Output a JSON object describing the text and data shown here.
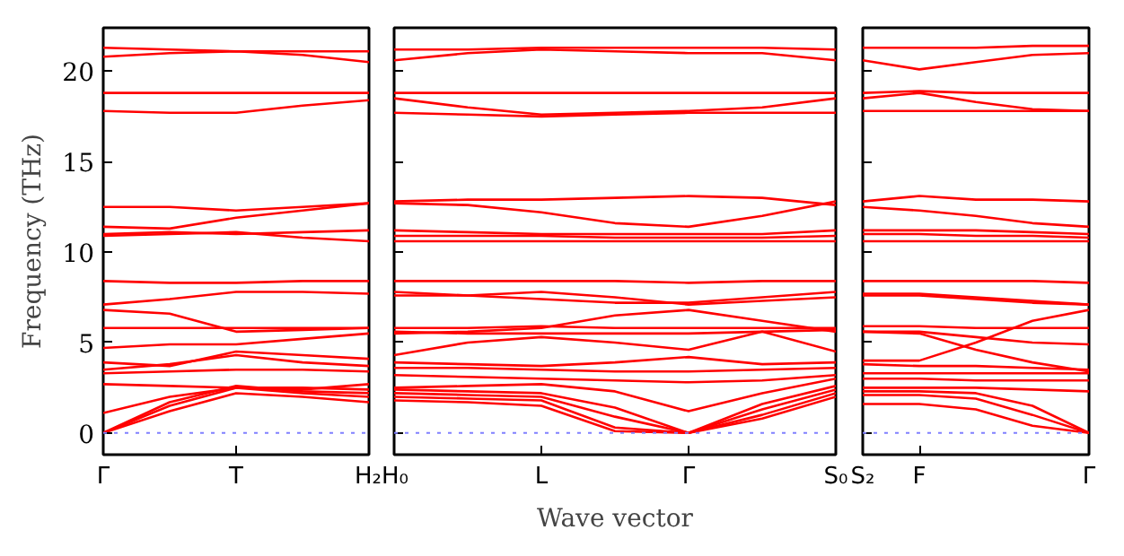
{
  "chart_data": [
    {
      "type": "line",
      "ylabel": "Frequency (THz)",
      "color": "#ff0000",
      "ylim": [
        -1.2,
        22.4
      ],
      "yticks": [
        0,
        5,
        10,
        15,
        20
      ],
      "tick_labels": "xy",
      "categories": [
        "Γ",
        null,
        "T",
        null,
        "H₂"
      ],
      "ref_lines": [
        {
          "axis": "y",
          "value": 0,
          "label": null,
          "color": "#8080ff",
          "line_style": "dotted"
        }
      ],
      "series": [
        {
          "values": [
            21.3,
            21.2,
            21.1,
            21.1,
            21.1
          ]
        },
        {
          "values": [
            20.8,
            21.0,
            21.1,
            20.9,
            20.5
          ]
        },
        {
          "values": [
            18.8,
            18.8,
            18.8,
            18.8,
            18.8
          ]
        },
        {
          "values": [
            17.8,
            17.7,
            17.7,
            18.1,
            18.4
          ]
        },
        {
          "values": [
            12.5,
            12.5,
            12.3,
            12.5,
            12.7
          ]
        },
        {
          "values": [
            11.4,
            11.3,
            11.9,
            12.3,
            12.7
          ]
        },
        {
          "values": [
            11.0,
            11.1,
            11.0,
            11.1,
            11.2
          ]
        },
        {
          "values": [
            10.9,
            11.0,
            11.1,
            10.8,
            10.6
          ]
        },
        {
          "values": [
            8.4,
            8.3,
            8.3,
            8.4,
            8.4
          ]
        },
        {
          "values": [
            7.1,
            7.4,
            7.8,
            7.8,
            7.7
          ]
        },
        {
          "values": [
            6.8,
            6.6,
            5.6,
            5.7,
            5.8
          ]
        },
        {
          "values": [
            5.8,
            5.8,
            5.8,
            5.8,
            5.8
          ]
        },
        {
          "values": [
            4.7,
            4.9,
            4.9,
            5.2,
            5.5
          ]
        },
        {
          "values": [
            3.9,
            3.7,
            4.5,
            4.3,
            4.1
          ]
        },
        {
          "values": [
            3.5,
            3.8,
            4.3,
            3.9,
            3.7
          ]
        },
        {
          "values": [
            3.3,
            3.4,
            3.5,
            3.5,
            3.4
          ]
        },
        {
          "values": [
            2.7,
            2.6,
            2.5,
            2.4,
            2.7
          ]
        },
        {
          "values": [
            1.1,
            2.0,
            2.5,
            2.5,
            2.4
          ]
        },
        {
          "values": [
            0,
            1.7,
            2.6,
            2.3,
            2.2
          ]
        },
        {
          "values": [
            0,
            1.5,
            2.5,
            2.2,
            2.0
          ]
        },
        {
          "values": [
            0,
            1.2,
            2.2,
            2.0,
            1.7
          ]
        }
      ]
    },
    {
      "type": "line",
      "xlabel": "Wave vector",
      "color": "#ff0000",
      "ylim": [
        -1.2,
        22.4
      ],
      "yticks": [
        0,
        5,
        10,
        15,
        20
      ],
      "tick_labels": "x",
      "categories": [
        "H₀",
        null,
        "L",
        null,
        "Γ",
        null,
        "S₀"
      ],
      "ref_lines": [
        {
          "axis": "y",
          "value": 0,
          "label": null,
          "color": "#8080ff",
          "line_style": "dotted"
        }
      ],
      "series": [
        {
          "values": [
            21.2,
            21.2,
            21.3,
            21.3,
            21.3,
            21.3,
            21.2
          ]
        },
        {
          "values": [
            20.6,
            21.0,
            21.2,
            21.1,
            21.0,
            21.0,
            20.6
          ]
        },
        {
          "values": [
            18.8,
            18.8,
            18.8,
            18.8,
            18.8,
            18.8,
            18.8
          ]
        },
        {
          "values": [
            18.5,
            18.0,
            17.6,
            17.7,
            17.8,
            18.0,
            18.5
          ]
        },
        {
          "values": [
            17.7,
            17.6,
            17.5,
            17.6,
            17.7,
            17.7,
            17.7
          ]
        },
        {
          "values": [
            12.8,
            12.9,
            12.9,
            13.0,
            13.1,
            13.0,
            12.6
          ]
        },
        {
          "values": [
            12.7,
            12.6,
            12.2,
            11.6,
            11.4,
            12.0,
            12.8
          ]
        },
        {
          "values": [
            11.2,
            11.1,
            11.0,
            11.0,
            11.0,
            11.0,
            11.2
          ]
        },
        {
          "values": [
            10.9,
            10.9,
            10.9,
            10.8,
            10.8,
            10.8,
            10.9
          ]
        },
        {
          "values": [
            10.6,
            10.6,
            10.6,
            10.6,
            10.6,
            10.6,
            10.6
          ]
        },
        {
          "values": [
            8.4,
            8.4,
            8.4,
            8.4,
            8.3,
            8.4,
            8.4
          ]
        },
        {
          "values": [
            7.8,
            7.6,
            7.4,
            7.2,
            7.2,
            7.5,
            7.8
          ]
        },
        {
          "values": [
            7.6,
            7.6,
            7.8,
            7.5,
            7.1,
            7.3,
            7.5
          ]
        },
        {
          "values": [
            5.5,
            5.6,
            5.8,
            6.5,
            6.8,
            6.2,
            5.6
          ]
        },
        {
          "values": [
            5.8,
            5.8,
            5.9,
            5.8,
            5.8,
            5.8,
            5.8
          ]
        },
        {
          "values": [
            5.6,
            5.5,
            5.5,
            5.5,
            5.5,
            5.6,
            5.7
          ]
        },
        {
          "values": [
            4.3,
            5.0,
            5.3,
            5.0,
            4.6,
            5.6,
            4.5
          ]
        },
        {
          "values": [
            3.9,
            3.8,
            3.7,
            3.9,
            4.2,
            3.8,
            3.9
          ]
        },
        {
          "values": [
            3.6,
            3.6,
            3.5,
            3.4,
            3.4,
            3.5,
            3.6
          ]
        },
        {
          "values": [
            3.2,
            3.1,
            3.0,
            2.9,
            2.8,
            2.9,
            3.2
          ]
        },
        {
          "values": [
            2.5,
            2.6,
            2.7,
            2.3,
            1.2,
            2.2,
            3.0
          ]
        },
        {
          "values": [
            2.4,
            2.3,
            2.2,
            1.4,
            0.0,
            1.6,
            2.6
          ]
        },
        {
          "values": [
            2.2,
            2.1,
            2.0,
            0.9,
            0.0,
            1.3,
            2.4
          ]
        },
        {
          "values": [
            2.0,
            1.9,
            1.8,
            0.3,
            0.0,
            1.0,
            2.2
          ]
        },
        {
          "values": [
            1.8,
            1.7,
            1.5,
            0.1,
            0.0,
            0.8,
            2.0
          ]
        }
      ]
    },
    {
      "type": "line",
      "color": "#ff0000",
      "ylim": [
        -1.2,
        22.4
      ],
      "yticks": [
        0,
        5,
        10,
        15,
        20
      ],
      "tick_labels": "x",
      "categories": [
        "S₂",
        "F",
        null,
        null,
        "Γ"
      ],
      "ref_lines": [
        {
          "axis": "y",
          "value": 0,
          "label": null,
          "color": "#8080ff",
          "line_style": "dotted"
        }
      ],
      "series": [
        {
          "values": [
            21.3,
            21.3,
            21.3,
            21.4,
            21.4
          ]
        },
        {
          "values": [
            20.6,
            20.1,
            20.5,
            20.9,
            21.0
          ]
        },
        {
          "values": [
            18.8,
            18.9,
            18.8,
            18.8,
            18.8
          ]
        },
        {
          "values": [
            18.5,
            18.8,
            18.3,
            17.9,
            17.8
          ]
        },
        {
          "values": [
            17.8,
            17.8,
            17.8,
            17.8,
            17.8
          ]
        },
        {
          "values": [
            12.8,
            13.1,
            12.9,
            12.9,
            12.8
          ]
        },
        {
          "values": [
            12.5,
            12.3,
            12.0,
            11.6,
            11.4
          ]
        },
        {
          "values": [
            11.2,
            11.2,
            11.2,
            11.1,
            11.0
          ]
        },
        {
          "values": [
            11.0,
            11.0,
            10.9,
            10.9,
            10.8
          ]
        },
        {
          "values": [
            10.6,
            10.6,
            10.6,
            10.6,
            10.6
          ]
        },
        {
          "values": [
            8.4,
            8.4,
            8.4,
            8.4,
            8.3
          ]
        },
        {
          "values": [
            7.7,
            7.7,
            7.5,
            7.3,
            7.1
          ]
        },
        {
          "values": [
            7.6,
            7.6,
            7.4,
            7.2,
            7.1
          ]
        },
        {
          "values": [
            5.9,
            5.9,
            5.8,
            5.8,
            5.8
          ]
        },
        {
          "values": [
            5.6,
            5.6,
            5.3,
            5.0,
            4.9
          ]
        },
        {
          "values": [
            4.0,
            4.0,
            5.0,
            6.2,
            6.8
          ]
        },
        {
          "values": [
            5.6,
            5.5,
            4.6,
            3.9,
            3.4
          ]
        },
        {
          "values": [
            3.8,
            3.7,
            3.7,
            3.6,
            3.5
          ]
        },
        {
          "values": [
            3.3,
            3.3,
            3.3,
            3.3,
            3.3
          ]
        },
        {
          "values": [
            3.0,
            3.0,
            2.9,
            2.9,
            2.9
          ]
        },
        {
          "values": [
            2.5,
            2.5,
            2.5,
            2.4,
            2.3
          ]
        },
        {
          "values": [
            2.3,
            2.3,
            2.2,
            1.5,
            0.0
          ]
        },
        {
          "values": [
            2.1,
            2.1,
            1.9,
            1.0,
            0.0
          ]
        },
        {
          "values": [
            1.6,
            1.6,
            1.3,
            0.4,
            0.0
          ]
        }
      ]
    }
  ]
}
